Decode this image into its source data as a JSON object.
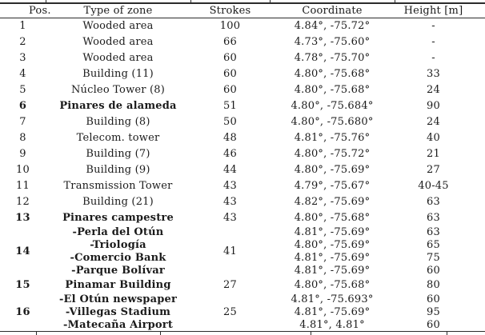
{
  "table": {
    "headers": {
      "pos": "Pos.",
      "type": "Type of zone",
      "strokes": "Strokes",
      "coordinate": "Coordinate",
      "height": "Height [m]"
    },
    "rows": [
      {
        "pos": "1",
        "type": "Wooded area",
        "strokes": "100",
        "coordinate": "4.84°, -75.72°",
        "height": "-"
      },
      {
        "pos": "2",
        "type": "Wooded area",
        "strokes": "66",
        "coordinate": "4.73°, -75.60°",
        "height": "-"
      },
      {
        "pos": "3",
        "type": "Wooded area",
        "strokes": "60",
        "coordinate": "4.78°, -75.70°",
        "height": "-"
      },
      {
        "pos": "4",
        "type": "Building (11)",
        "strokes": "60",
        "coordinate": "4.80°, -75.68°",
        "height": "33"
      },
      {
        "pos": "5",
        "type": "Núcleo Tower (8)",
        "strokes": "60",
        "coordinate": "4.80°, -75.68°",
        "height": "24"
      },
      {
        "pos": "6",
        "bold": true,
        "type": "Pinares de alameda",
        "strokes": "51",
        "coordinate": "4.80°, -75.684°",
        "height": "90"
      },
      {
        "pos": "7",
        "type": "Building (8)",
        "strokes": "50",
        "coordinate": "4.80°, -75.680°",
        "height": "24"
      },
      {
        "pos": "8",
        "type": "Telecom. tower",
        "strokes": "48",
        "coordinate": "4.81°, -75.76°",
        "height": "40"
      },
      {
        "pos": "9",
        "type": "Building (7)",
        "strokes": "46",
        "coordinate": "4.80°, -75.72°",
        "height": "21"
      },
      {
        "pos": "10",
        "type": "Building (9)",
        "strokes": "44",
        "coordinate": "4.80°, -75.69°",
        "height": "27"
      },
      {
        "pos": "11",
        "type": "Transmission Tower",
        "strokes": "43",
        "coordinate": "4.79°, -75.67°",
        "height": "40-45"
      },
      {
        "pos": "12",
        "type": "Building (21)",
        "strokes": "43",
        "coordinate": "4.82°, -75.69°",
        "height": "63"
      },
      {
        "pos": "13",
        "bold": true,
        "type": "Pinares campestre",
        "strokes": "43",
        "coordinate": "4.80°, -75.68°",
        "height": "63"
      },
      {
        "pos": "14",
        "bold": true,
        "strokes": "41",
        "lines": [
          {
            "type": "-Perla del Otún",
            "coordinate": "4.81°, -75.69°",
            "height": "63"
          },
          {
            "type": "-Triología",
            "coordinate": "4.80°, -75.69°",
            "height": "65"
          },
          {
            "type": "-Comercio Bank",
            "coordinate": "4.81°, -75.69°",
            "height": "75"
          },
          {
            "type": "-Parque Bolívar",
            "coordinate": "4.81°, -75.69°",
            "height": "60"
          }
        ]
      },
      {
        "pos": "15",
        "bold": true,
        "type": "Pinamar Building",
        "strokes": "27",
        "coordinate": "4.80°, -75.68°",
        "height": "80"
      },
      {
        "pos": "16",
        "bold": true,
        "strokes": "25",
        "lines": [
          {
            "type": "-El Otún newspaper",
            "coordinate": "4.81°, -75.693°",
            "height": "60"
          },
          {
            "type": "-Villegas Stadium",
            "coordinate": "4.81°, -75.69°",
            "height": "95"
          },
          {
            "type": "-Matecaña Airport",
            "coordinate": "4.81°, 4.81°",
            "height": "60"
          }
        ]
      }
    ]
  },
  "colors": {
    "rule": "#2b2b2b",
    "text": "#1b1b1b",
    "background": "#ffffff"
  }
}
